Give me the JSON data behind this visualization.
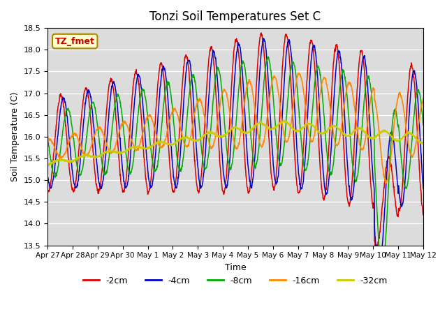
{
  "title": "Tonzi Soil Temperatures Set C",
  "xlabel": "Time",
  "ylabel": "Soil Temperature (C)",
  "ylim": [
    13.5,
    18.5
  ],
  "bg_color": "#dcdcdc",
  "plot_bg": "#dcdcdc",
  "annotation_text": "TZ_fmet",
  "annotation_color": "#cc0000",
  "annotation_bg": "#ffffcc",
  "annotation_border": "#aa8800",
  "series_colors": {
    "-2cm": "#dd0000",
    "-4cm": "#0000cc",
    "-8cm": "#00aa00",
    "-16cm": "#ff8800",
    "-32cm": "#cccc00"
  },
  "legend_labels": [
    "-2cm",
    "-4cm",
    "-8cm",
    "-16cm",
    "-32cm"
  ],
  "x_tick_labels": [
    "Apr 27",
    "Apr 28",
    "Apr 29",
    "Apr 30",
    "May 1",
    "May 2",
    "May 3",
    "May 4",
    "May 5",
    "May 6",
    "May 7",
    "May 8",
    "May 9",
    "May 10",
    "May 11",
    "May 12"
  ]
}
